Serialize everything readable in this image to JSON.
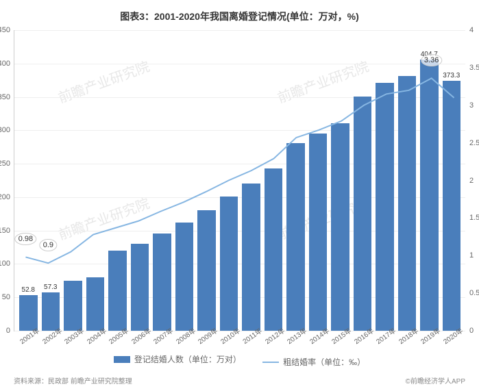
{
  "chart": {
    "type": "bar+line",
    "title": "图表3：2001-2020年我国离婚登记情况(单位：万对，%)",
    "background_color": "#ffffff",
    "grid_color": "#eeeeee",
    "axis_color": "#cccccc",
    "text_color": "#666666",
    "title_fontsize": 14,
    "label_fontsize": 11,
    "categories": [
      "2001年",
      "2002年",
      "2003年",
      "2004年",
      "2005年",
      "2006年",
      "2007年",
      "2008年",
      "2009年",
      "2010年",
      "2011年",
      "2012年",
      "2013年",
      "2014年",
      "2015年",
      "2016年",
      "2017年",
      "2018年",
      "2019年",
      "2020年"
    ],
    "bars": {
      "name": "登记结婚人数（单位：万对）",
      "color": "#4a7ebb",
      "width_ratio": 0.7,
      "values": [
        52.8,
        57.3,
        75,
        80,
        120,
        130,
        145,
        162,
        180,
        200,
        220,
        242,
        280,
        295,
        310,
        350,
        370,
        380,
        404.7,
        373.3
      ],
      "value_labels": [
        "52.8",
        "57.3",
        "",
        "",
        "",
        "",
        "",
        "",
        "",
        "",
        "",
        "",
        "",
        "",
        "",
        "",
        "",
        "",
        "404.7",
        "373.3"
      ],
      "y_axis": {
        "min": 0,
        "max": 450,
        "tick_step": 50
      }
    },
    "line": {
      "name": "粗结婚率（单位：‰）",
      "color": "#86b6e2",
      "stroke_width": 2,
      "values": [
        0.98,
        0.9,
        1.05,
        1.28,
        1.37,
        1.46,
        1.59,
        1.71,
        1.85,
        2.0,
        2.13,
        2.29,
        2.57,
        2.67,
        2.79,
        3.0,
        3.15,
        3.2,
        3.36,
        3.1
      ],
      "y_axis": {
        "min": 0,
        "max": 4,
        "tick_step": 0.5
      }
    },
    "annotations": [
      {
        "text": "0.98",
        "x_index": 0,
        "y_value": 0.98,
        "axis": "right"
      },
      {
        "text": "0.9",
        "x_index": 1,
        "y_value": 0.9,
        "axis": "right"
      },
      {
        "text": "3.36",
        "x_index": 18,
        "y_value": 3.36,
        "axis": "right"
      }
    ]
  },
  "legend": {
    "bar_label": "登记结婚人数（单位：万对）",
    "line_label": "粗结婚率（单位：‰）"
  },
  "footer": {
    "source": "资料来源：民政部 前瞻产业研究院整理",
    "copyright": "©前瞻经济学人APP"
  },
  "watermark": "前瞻产业研究院"
}
